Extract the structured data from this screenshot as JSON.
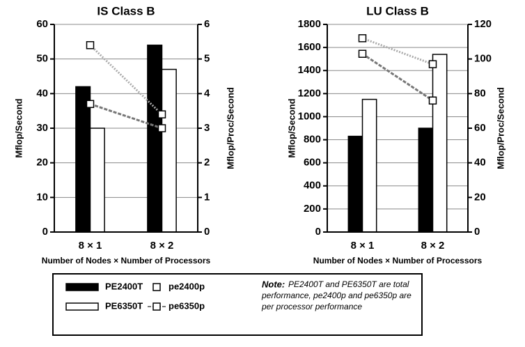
{
  "chart_data": [
    {
      "type": "bar",
      "title": "IS Class B",
      "categories": [
        "8 × 1",
        "8 × 2"
      ],
      "x_label": "Number of Nodes × Number of Processors",
      "y_label": "Mflop/Second",
      "y2_label": "Mflop/Proc/Second",
      "ylim": [
        0,
        60
      ],
      "yticks": [
        0,
        10,
        20,
        30,
        40,
        50,
        60
      ],
      "y2lim": [
        0,
        6
      ],
      "y2ticks": [
        0,
        1,
        2,
        3,
        4,
        5,
        6
      ],
      "grid": true,
      "series": [
        {
          "name": "PE2400T",
          "kind": "bar",
          "color": "#000000",
          "values": [
            42,
            54
          ]
        },
        {
          "name": "PE6350T",
          "kind": "bar",
          "color": "#ffffff",
          "values": [
            30,
            47
          ]
        },
        {
          "name": "pe2400p",
          "kind": "line",
          "axis": "y2",
          "color": "#aaaaaa",
          "values": [
            5.4,
            3.4
          ]
        },
        {
          "name": "pe6350p",
          "kind": "line",
          "axis": "y2",
          "color": "#777777",
          "values": [
            3.7,
            3.0
          ]
        }
      ]
    },
    {
      "type": "bar",
      "title": "LU Class B",
      "categories": [
        "8 × 1",
        "8 × 2"
      ],
      "x_label": "Number of Nodes × Number of Processors",
      "y_label": "Mflop/Second",
      "y2_label": "Mflop/Proc/Second",
      "ylim": [
        0,
        1800
      ],
      "yticks": [
        0,
        200,
        400,
        600,
        800,
        1000,
        1200,
        1400,
        1600,
        1800
      ],
      "y2lim": [
        0,
        120
      ],
      "y2ticks": [
        0,
        20,
        40,
        60,
        80,
        100,
        120
      ],
      "grid": true,
      "series": [
        {
          "name": "PE2400T",
          "kind": "bar",
          "color": "#000000",
          "values": [
            830,
            900
          ]
        },
        {
          "name": "PE6350T",
          "kind": "bar",
          "color": "#ffffff",
          "values": [
            1150,
            1540
          ]
        },
        {
          "name": "pe2400p",
          "kind": "line",
          "axis": "y2",
          "color": "#aaaaaa",
          "values": [
            112,
            97
          ]
        },
        {
          "name": "pe6350p",
          "kind": "line",
          "axis": "y2",
          "color": "#777777",
          "values": [
            103,
            76
          ]
        }
      ]
    }
  ],
  "note": {
    "label": "Note:",
    "lines": [
      "PE2400T and PE6350T are total",
      "performance, pe2400p and pe6350p are",
      "per processor performance"
    ]
  }
}
